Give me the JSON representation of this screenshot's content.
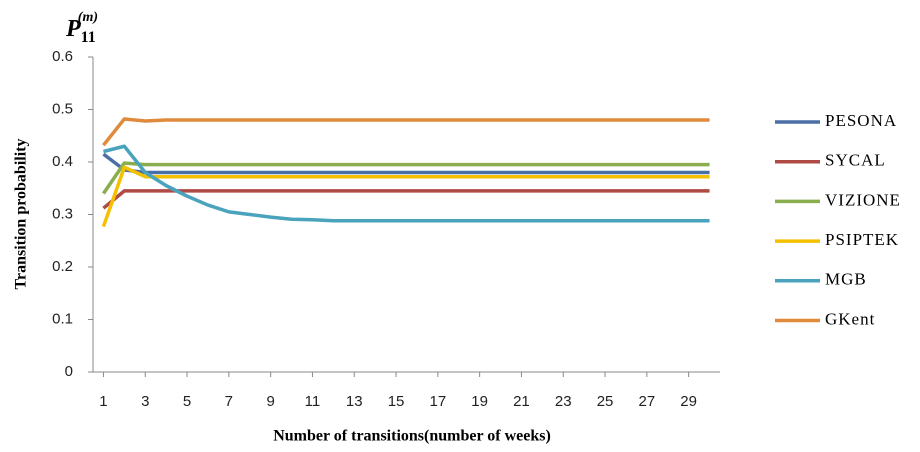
{
  "chart_data": {
    "type": "line",
    "title": {
      "base": "P",
      "sub": "11",
      "sup": "(m)"
    },
    "xlabel": "Number  of transitions(number  of weeks)",
    "ylabel": "Transition probability",
    "x": [
      1,
      2,
      3,
      4,
      5,
      6,
      7,
      8,
      9,
      10,
      11,
      12,
      13,
      14,
      15,
      16,
      17,
      18,
      19,
      20,
      21,
      22,
      23,
      24,
      25,
      26,
      27,
      28,
      29,
      30
    ],
    "xlim": [
      0.5,
      30.5
    ],
    "xticks": [
      1,
      3,
      5,
      7,
      9,
      11,
      13,
      15,
      17,
      19,
      21,
      23,
      25,
      27,
      29
    ],
    "ylim": [
      0,
      0.6
    ],
    "yticks": [
      0,
      0.1,
      0.2,
      0.3,
      0.4,
      0.5,
      0.6
    ],
    "grid": false,
    "legend": "right",
    "series": [
      {
        "name": "PESONA",
        "color": "#4a6fa5",
        "values": [
          0.415,
          0.385,
          0.38,
          0.38,
          0.38,
          0.38,
          0.38,
          0.38,
          0.38,
          0.38,
          0.38,
          0.38,
          0.38,
          0.38,
          0.38,
          0.38,
          0.38,
          0.38,
          0.38,
          0.38,
          0.38,
          0.38,
          0.38,
          0.38,
          0.38,
          0.38,
          0.38,
          0.38,
          0.38,
          0.38
        ]
      },
      {
        "name": "SYCAL",
        "color": "#b04a45",
        "values": [
          0.312,
          0.345,
          0.345,
          0.345,
          0.345,
          0.345,
          0.345,
          0.345,
          0.345,
          0.345,
          0.345,
          0.345,
          0.345,
          0.345,
          0.345,
          0.345,
          0.345,
          0.345,
          0.345,
          0.345,
          0.345,
          0.345,
          0.345,
          0.345,
          0.345,
          0.345,
          0.345,
          0.345,
          0.345,
          0.345
        ]
      },
      {
        "name": "VIZIONE",
        "color": "#8aad4e",
        "values": [
          0.34,
          0.398,
          0.395,
          0.395,
          0.395,
          0.395,
          0.395,
          0.395,
          0.395,
          0.395,
          0.395,
          0.395,
          0.395,
          0.395,
          0.395,
          0.395,
          0.395,
          0.395,
          0.395,
          0.395,
          0.395,
          0.395,
          0.395,
          0.395,
          0.395,
          0.395,
          0.395,
          0.395,
          0.395,
          0.395
        ]
      },
      {
        "name": "PSIPTEK",
        "color": "#f5c000",
        "values": [
          0.277,
          0.39,
          0.372,
          0.372,
          0.372,
          0.372,
          0.372,
          0.372,
          0.372,
          0.372,
          0.372,
          0.372,
          0.372,
          0.372,
          0.372,
          0.372,
          0.372,
          0.372,
          0.372,
          0.372,
          0.372,
          0.372,
          0.372,
          0.372,
          0.372,
          0.372,
          0.372,
          0.372,
          0.372,
          0.372
        ]
      },
      {
        "name": "MGB",
        "color": "#4aa3bd",
        "values": [
          0.42,
          0.43,
          0.38,
          0.355,
          0.335,
          0.318,
          0.305,
          0.3,
          0.295,
          0.291,
          0.29,
          0.288,
          0.288,
          0.288,
          0.288,
          0.288,
          0.288,
          0.288,
          0.288,
          0.288,
          0.288,
          0.288,
          0.288,
          0.288,
          0.288,
          0.288,
          0.288,
          0.288,
          0.288,
          0.288
        ]
      },
      {
        "name": "GKent",
        "color": "#e08a3c",
        "values": [
          0.432,
          0.482,
          0.478,
          0.48,
          0.48,
          0.48,
          0.48,
          0.48,
          0.48,
          0.48,
          0.48,
          0.48,
          0.48,
          0.48,
          0.48,
          0.48,
          0.48,
          0.48,
          0.48,
          0.48,
          0.48,
          0.48,
          0.48,
          0.48,
          0.48,
          0.48,
          0.48,
          0.48,
          0.48,
          0.48
        ]
      }
    ]
  }
}
